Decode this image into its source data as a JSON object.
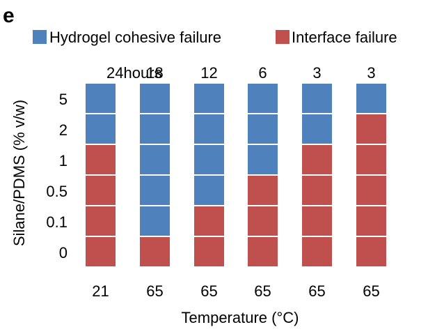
{
  "chart_data": {
    "type": "heatmap",
    "panel_label": "e",
    "legend": [
      {
        "key": "cohesive",
        "label": "Hydrogel cohesive failure",
        "color": "#4f81bd"
      },
      {
        "key": "interface",
        "label": "Interface failure",
        "color": "#c0504d"
      }
    ],
    "ylabel": "Silane/PDMS (% v/w)",
    "xlabel": "Temperature (°C)",
    "rows": [
      "5",
      "2",
      "1",
      "0.5",
      "0.1",
      "0"
    ],
    "columns": [
      {
        "time": "24hours",
        "temperature": "21",
        "cells": [
          "cohesive",
          "cohesive",
          "interface",
          "interface",
          "interface",
          "interface"
        ]
      },
      {
        "time": "18",
        "temperature": "65",
        "cells": [
          "cohesive",
          "cohesive",
          "cohesive",
          "cohesive",
          "cohesive",
          "interface"
        ]
      },
      {
        "time": "12",
        "temperature": "65",
        "cells": [
          "cohesive",
          "cohesive",
          "cohesive",
          "cohesive",
          "interface",
          "interface"
        ]
      },
      {
        "time": "6",
        "temperature": "65",
        "cells": [
          "cohesive",
          "cohesive",
          "cohesive",
          "interface",
          "interface",
          "interface"
        ]
      },
      {
        "time": "3",
        "temperature": "65",
        "cells": [
          "cohesive",
          "cohesive",
          "interface",
          "interface",
          "interface",
          "interface"
        ]
      },
      {
        "time": "3",
        "temperature": "65",
        "cells": [
          "cohesive",
          "interface",
          "interface",
          "interface",
          "interface",
          "interface"
        ]
      }
    ]
  }
}
